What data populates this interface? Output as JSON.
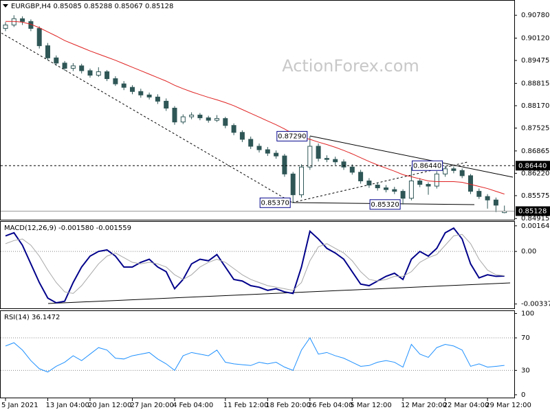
{
  "chart_data": [
    {
      "type": "candlestick",
      "title": "EURGBP,H4 0.85085 0.85288 0.85067 0.85128",
      "watermark": "ActionForex.com",
      "categories": [
        "5 Jan 2021",
        null,
        null,
        null,
        null,
        "13 Jan 04:00",
        null,
        null,
        null,
        null,
        "20 Jan 12:00",
        null,
        null,
        null,
        null,
        "27 Jan 20:00",
        null,
        null,
        null,
        null,
        "4 Feb 04:00",
        null,
        null,
        null,
        null,
        null,
        "11 Feb 12:00",
        null,
        null,
        null,
        null,
        "18 Feb 20:00",
        null,
        null,
        null,
        null,
        "26 Feb 04:00",
        null,
        null,
        null,
        null,
        "5 Mar 12:00",
        null,
        null,
        null,
        null,
        null,
        "12 Mar 20:00",
        null,
        null,
        null,
        null,
        "22 Mar 04:00",
        null,
        null,
        null,
        null,
        "29 Mar 12:00",
        null,
        null
      ],
      "open": [
        0.904,
        0.905,
        0.9068,
        0.906,
        0.904,
        0.899,
        0.8955,
        0.894,
        0.8925,
        0.8932,
        0.8918,
        0.8905,
        0.8915,
        0.8895,
        0.888,
        0.887,
        0.8858,
        0.8848,
        0.8842,
        0.883,
        0.881,
        0.877,
        0.8785,
        0.879,
        0.8782,
        0.8775,
        0.878,
        0.876,
        0.874,
        0.872,
        0.87,
        0.869,
        0.868,
        0.8672,
        0.862,
        0.856,
        0.864,
        0.87,
        0.8665,
        0.8662,
        0.8655,
        0.864,
        0.8625,
        0.86,
        0.8588,
        0.858,
        0.8575,
        0.857,
        0.855,
        0.86,
        0.859,
        0.8585,
        0.862,
        0.8635,
        0.863,
        0.8615,
        0.857,
        0.8555,
        0.8545,
        0.85085
      ],
      "high": [
        0.9058,
        0.9078,
        0.9075,
        0.9066,
        0.9046,
        0.8998,
        0.8962,
        0.8946,
        0.894,
        0.8938,
        0.8924,
        0.8928,
        0.892,
        0.8902,
        0.8888,
        0.8876,
        0.8866,
        0.8855,
        0.885,
        0.8838,
        0.8816,
        0.8792,
        0.8798,
        0.8796,
        0.8788,
        0.879,
        0.8785,
        0.8766,
        0.8746,
        0.8728,
        0.8708,
        0.8698,
        0.8688,
        0.8678,
        0.8626,
        0.8648,
        0.8729,
        0.8708,
        0.8674,
        0.867,
        0.8662,
        0.8648,
        0.8632,
        0.8608,
        0.8596,
        0.8588,
        0.8583,
        0.8576,
        0.864,
        0.8608,
        0.8596,
        0.8628,
        0.8644,
        0.8642,
        0.8636,
        0.862,
        0.8578,
        0.8562,
        0.8552,
        0.85288
      ],
      "low": [
        0.9032,
        0.9044,
        0.905,
        0.9032,
        0.8982,
        0.8948,
        0.8932,
        0.8918,
        0.8917,
        0.891,
        0.8898,
        0.89,
        0.8888,
        0.8874,
        0.8862,
        0.885,
        0.884,
        0.8835,
        0.8822,
        0.8802,
        0.8762,
        0.8764,
        0.8778,
        0.8775,
        0.8768,
        0.877,
        0.8752,
        0.8732,
        0.8712,
        0.8692,
        0.8682,
        0.8672,
        0.8664,
        0.8612,
        0.8537,
        0.8552,
        0.8632,
        0.8656,
        0.8654,
        0.8646,
        0.8632,
        0.8618,
        0.8592,
        0.858,
        0.8572,
        0.8567,
        0.8562,
        0.8532,
        0.8544,
        0.8582,
        0.856,
        0.8578,
        0.8612,
        0.8622,
        0.8608,
        0.8562,
        0.8548,
        0.852,
        0.851,
        0.85067
      ],
      "close": [
        0.905,
        0.9068,
        0.906,
        0.904,
        0.899,
        0.8955,
        0.894,
        0.8925,
        0.8932,
        0.8918,
        0.8905,
        0.8915,
        0.8895,
        0.888,
        0.887,
        0.8858,
        0.8848,
        0.8842,
        0.883,
        0.881,
        0.877,
        0.8785,
        0.879,
        0.8782,
        0.8775,
        0.878,
        0.876,
        0.874,
        0.872,
        0.87,
        0.869,
        0.868,
        0.8672,
        0.862,
        0.856,
        0.864,
        0.87,
        0.8665,
        0.8662,
        0.8655,
        0.864,
        0.8625,
        0.86,
        0.8588,
        0.858,
        0.8575,
        0.857,
        0.855,
        0.86,
        0.859,
        0.8585,
        0.862,
        0.8635,
        0.863,
        0.8615,
        0.857,
        0.8555,
        0.8545,
        0.853,
        0.85128
      ],
      "color": "#2f5656",
      "series": [
        {
          "color": "#e02020",
          "values": [
            0.906,
            0.906,
            0.9058,
            0.9052,
            0.9042,
            0.903,
            0.9018,
            0.9005,
            0.8995,
            0.8985,
            0.8975,
            0.8966,
            0.8957,
            0.8948,
            0.8938,
            0.8928,
            0.8918,
            0.8908,
            0.8898,
            0.8888,
            0.8876,
            0.8866,
            0.8857,
            0.8849,
            0.8841,
            0.8834,
            0.8826,
            0.8817,
            0.8806,
            0.8795,
            0.8784,
            0.8773,
            0.8762,
            0.875,
            0.8736,
            0.8726,
            0.872,
            0.8712,
            0.8705,
            0.8697,
            0.8688,
            0.8678,
            0.8667,
            0.8656,
            0.8646,
            0.8637,
            0.8628,
            0.8618,
            0.8612,
            0.8606,
            0.86,
            0.8598,
            0.8598,
            0.8598,
            0.8596,
            0.859,
            0.8584,
            0.8578,
            0.857,
            0.8562
          ]
        }
      ],
      "ylim": [
        0.8488,
        0.9122
      ],
      "yticks": [
        {
          "value": 0.9078,
          "label": "0.90780"
        },
        {
          "value": 0.9012,
          "label": "0.90120"
        },
        0.89475,
        0.88815,
        {
          "value": 0.8817,
          "label": "0.88170"
        },
        0.87525,
        0.86865,
        {
          "value": 0.8622,
          "label": "0.86220"
        },
        0.85575,
        0.84915
      ],
      "annotations": [
        {
          "value": 0.8729,
          "label": "0.87290"
        },
        {
          "value": 0.8537,
          "label": "0.85370"
        },
        {
          "value": 0.8532,
          "label": "0.85320"
        },
        {
          "value": 0.8644,
          "label": "0.86440"
        }
      ],
      "levels": [
        {
          "value": 0.8644,
          "label": "0.86440",
          "style": "dashed"
        },
        {
          "value": 0.85128,
          "label": "0.85128",
          "style": "solid"
        }
      ]
    },
    {
      "type": "line",
      "title": "MACD(12,26,9) -0.001580 -0.001559",
      "series": [
        {
          "color": "#00008b",
          "values": [
            0.001,
            0.0012,
            0.0004,
            -0.0008,
            -0.002,
            -0.003,
            -0.0033,
            -0.0032,
            -0.002,
            -0.001,
            -0.0003,
            0.0,
            0.0001,
            -0.0003,
            -0.001,
            -0.001,
            -0.0007,
            -0.0005,
            -0.001,
            -0.0013,
            -0.0024,
            -0.0018,
            -0.0008,
            -0.0005,
            -0.0006,
            -0.0002,
            -0.001,
            -0.0018,
            -0.0019,
            -0.0022,
            -0.0023,
            -0.0025,
            -0.0024,
            -0.0026,
            -0.0027,
            -0.001,
            0.0013,
            0.0008,
            0.0002,
            -0.0001,
            -0.0005,
            -0.0013,
            -0.0021,
            -0.0022,
            -0.0019,
            -0.0016,
            -0.0014,
            -0.0018,
            -0.0005,
            0.0,
            -0.0003,
            0.0002,
            0.0012,
            0.0015,
            0.0008,
            -0.0008,
            -0.0017,
            -0.0015,
            -0.0016,
            -0.00158
          ]
        },
        {
          "color": "#a8a8a8",
          "values": [
            0.0005,
            0.0007,
            0.0008,
            0.0004,
            -0.0003,
            -0.0012,
            -0.002,
            -0.0026,
            -0.0027,
            -0.0022,
            -0.0015,
            -0.0008,
            -0.0003,
            -0.0001,
            -0.0004,
            -0.0007,
            -0.0008,
            -0.0007,
            -0.0008,
            -0.001,
            -0.0015,
            -0.0018,
            -0.0015,
            -0.001,
            -0.0007,
            -0.0005,
            -0.0007,
            -0.0011,
            -0.0015,
            -0.0018,
            -0.002,
            -0.0022,
            -0.0023,
            -0.0024,
            -0.0025,
            -0.002,
            -0.0006,
            0.0003,
            0.0005,
            0.0002,
            -0.0001,
            -0.0006,
            -0.0013,
            -0.0018,
            -0.0019,
            -0.0018,
            -0.0016,
            -0.0016,
            -0.0013,
            -0.0007,
            -0.0004,
            -0.0002,
            0.0004,
            0.001,
            0.0011,
            0.0005,
            -0.0005,
            -0.0012,
            -0.0015,
            -0.001559
          ]
        }
      ],
      "ylim": [
        -0.0037,
        0.00195
      ],
      "yticks": [
        0.001648,
        {
          "value": 0,
          "label": "0.00"
        },
        -0.003379
      ],
      "grid": "dotted"
    },
    {
      "type": "line",
      "title": "RSI(14) 36.1472",
      "series": [
        {
          "color": "#1e90ff",
          "values": [
            60,
            64,
            55,
            42,
            32,
            28,
            35,
            40,
            48,
            42,
            50,
            58,
            55,
            45,
            44,
            48,
            50,
            52,
            44,
            38,
            30,
            48,
            52,
            50,
            48,
            55,
            40,
            38,
            37,
            36,
            40,
            38,
            40,
            34,
            30,
            55,
            70,
            50,
            52,
            48,
            45,
            40,
            35,
            36,
            40,
            42,
            40,
            34,
            62,
            50,
            46,
            58,
            62,
            60,
            55,
            35,
            38,
            34,
            35,
            36.1472
          ]
        }
      ],
      "ylim": [
        -4.3,
        103.8
      ],
      "yticks": [
        100,
        70,
        30,
        0
      ],
      "grid": "dotted"
    }
  ]
}
